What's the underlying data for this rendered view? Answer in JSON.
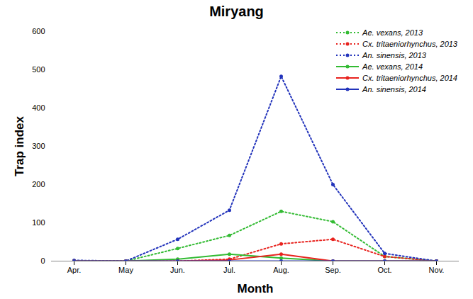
{
  "chart_data": {
    "type": "line",
    "title": "Miryang",
    "x_label": "Month",
    "y_label": "Trap index",
    "categories": [
      "Apr.",
      "May",
      "Jun.",
      "Jul.",
      "Aug.",
      "Sep.",
      "Oct.",
      "Nov."
    ],
    "ylim": [
      0,
      600
    ],
    "yticks": [
      0,
      100,
      200,
      300,
      400,
      500,
      600
    ],
    "grid": false,
    "legend": "upper right",
    "series": [
      {
        "name": "Ae. vexans, 2013",
        "color": "#33bb33",
        "line_style": "dotted",
        "marker": "circle",
        "values": [
          0,
          0,
          33,
          67,
          130,
          103,
          12,
          0
        ]
      },
      {
        "name": "Cx. tritaeniorhynchus, 2013",
        "color": "#e8231e",
        "line_style": "dotted",
        "marker": "circle",
        "values": [
          0,
          0,
          0,
          5,
          45,
          57,
          12,
          0
        ]
      },
      {
        "name": "An. sinensis, 2013",
        "color": "#2233bb",
        "line_style": "dotted",
        "marker": "circle",
        "values": [
          2,
          0,
          57,
          133,
          483,
          200,
          20,
          0
        ]
      },
      {
        "name": "Ae. vexans, 2014",
        "color": "#33bb33",
        "line_style": "solid",
        "marker": "circle",
        "values": [
          0,
          0,
          5,
          18,
          8,
          0,
          0,
          0
        ]
      },
      {
        "name": "Cx. tritaeniorhynchus, 2014",
        "color": "#e8231e",
        "line_style": "solid",
        "marker": "circle",
        "values": [
          0,
          0,
          0,
          3,
          18,
          0,
          0,
          0
        ]
      },
      {
        "name": "An. sinensis, 2014",
        "color": "#2233bb",
        "line_style": "solid",
        "marker": "circle",
        "values": [
          0,
          0,
          0,
          0,
          0,
          0,
          0,
          0
        ]
      }
    ]
  }
}
